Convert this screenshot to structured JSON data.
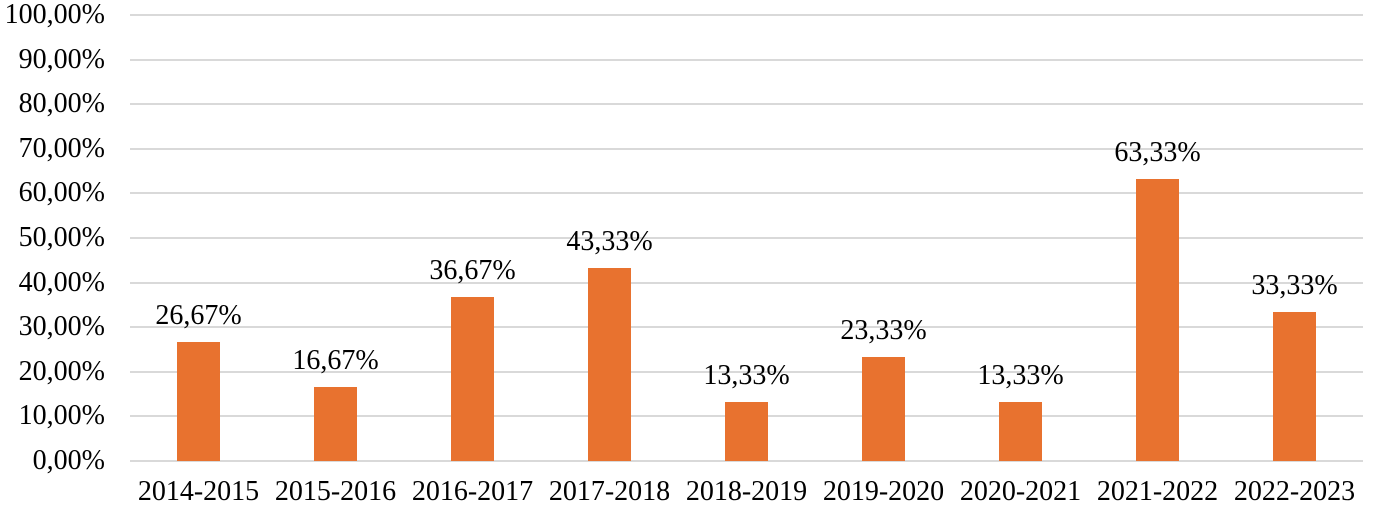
{
  "chart_data": {
    "type": "bar",
    "title": "",
    "xlabel": "",
    "ylabel": "",
    "categories": [
      "2014-2015",
      "2015-2016",
      "2016-2017",
      "2017-2018",
      "2018-2019",
      "2019-2020",
      "2020-2021",
      "2021-2022",
      "2022-2023"
    ],
    "values": [
      26.67,
      16.67,
      36.67,
      43.33,
      13.33,
      23.33,
      13.33,
      63.33,
      33.33
    ],
    "value_labels": [
      "26,67%",
      "16,67%",
      "36,67%",
      "43,33%",
      "13,33%",
      "23,33%",
      "13,33%",
      "63,33%",
      "33,33%"
    ],
    "series_name": "",
    "ylim": [
      0,
      100
    ],
    "y_tick_step": 10,
    "y_ticks": [
      {
        "value": 0,
        "label": "0,00%"
      },
      {
        "value": 10,
        "label": "10,00%"
      },
      {
        "value": 20,
        "label": "20,00%"
      },
      {
        "value": 30,
        "label": "30,00%"
      },
      {
        "value": 40,
        "label": "40,00%"
      },
      {
        "value": 50,
        "label": "50,00%"
      },
      {
        "value": 60,
        "label": "60,00%"
      },
      {
        "value": 70,
        "label": "70,00%"
      },
      {
        "value": 80,
        "label": "80,00%"
      },
      {
        "value": 90,
        "label": "90,00%"
      },
      {
        "value": 100,
        "label": "100,00%"
      }
    ],
    "grid": true,
    "legend": false,
    "decimal_separator": ",",
    "colors": {
      "bar_fill": "#E8722F",
      "gridline": "#D9D9D9",
      "text": "#000000",
      "background": "#FFFFFF"
    }
  }
}
